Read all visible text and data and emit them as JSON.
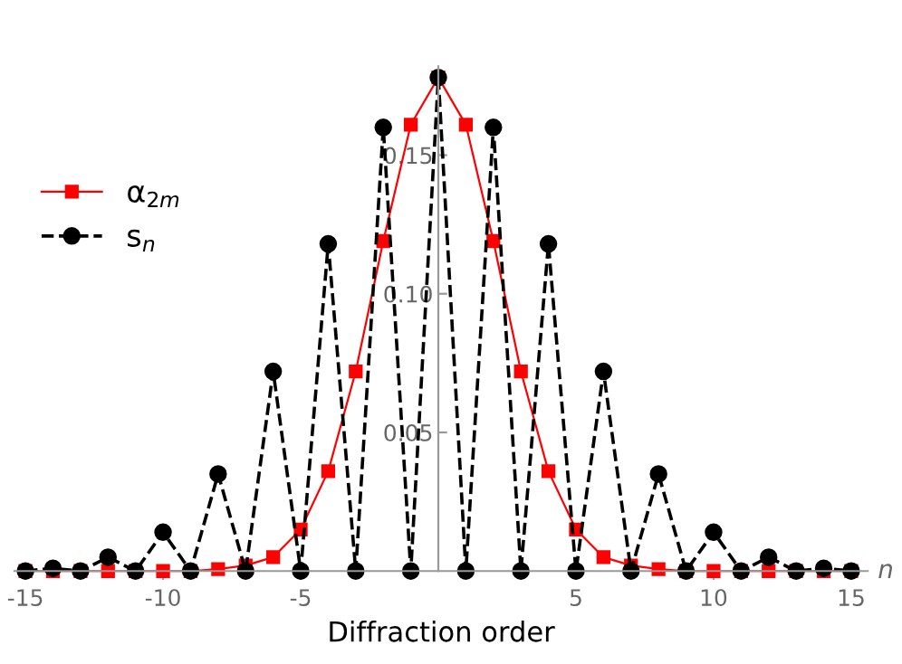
{
  "chart_data": {
    "type": "line",
    "xlabel": "Diffraction order",
    "annotations": [
      "n"
    ],
    "x": [
      -15,
      -14,
      -13,
      -12,
      -11,
      -10,
      -9,
      -8,
      -7,
      -6,
      -5,
      -4,
      -3,
      -2,
      -1,
      0,
      1,
      2,
      3,
      4,
      5,
      6,
      7,
      8,
      9,
      10,
      11,
      12,
      13,
      14,
      15
    ],
    "series": [
      {
        "name": "α$_{2m}$",
        "color": "#ff0000",
        "marker": "square",
        "line_style": "solid",
        "values": [
          0,
          0,
          0,
          0,
          0,
          0,
          0,
          0.0007,
          0.002,
          0.005,
          0.015,
          0.036,
          0.072,
          0.119,
          0.161,
          0.178,
          0.161,
          0.119,
          0.072,
          0.036,
          0.015,
          0.005,
          0.002,
          0.0007,
          0,
          0,
          0,
          0,
          0,
          0,
          0
        ]
      },
      {
        "name": "s$_{n}$",
        "color": "#000000",
        "marker": "circle",
        "line_style": "dashed",
        "values": [
          0,
          0.001,
          0,
          0.005,
          0,
          0.014,
          0,
          0.035,
          0,
          0.072,
          0,
          0.118,
          0,
          0.16,
          0,
          0.178,
          0,
          0.16,
          0,
          0.118,
          0,
          0.072,
          0,
          0.035,
          0,
          0.014,
          0,
          0.005,
          0,
          0.001,
          0
        ]
      }
    ],
    "xlim": [
      -15.4,
      15.6
    ],
    "ylim": [
      0,
      0.182
    ],
    "xticks": [
      -15,
      -10,
      -5,
      5,
      10,
      15
    ],
    "yticks": [
      {
        "value": 0.05,
        "label": "0.05"
      },
      {
        "value": 0.1,
        "label": "0.10"
      },
      {
        "value": 0.15,
        "label": "0.15"
      }
    ],
    "legend": "top left",
    "grid": false
  }
}
